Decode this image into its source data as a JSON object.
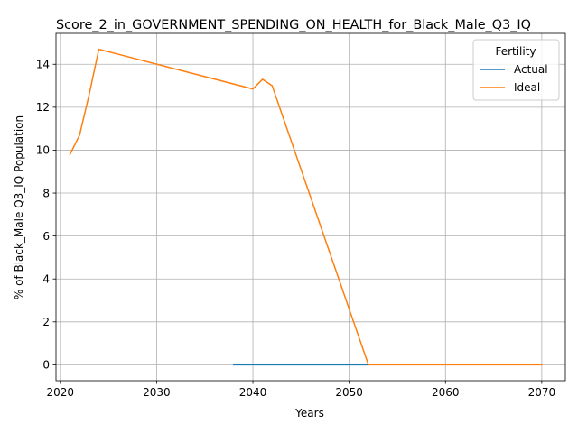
{
  "chart_data": {
    "type": "line",
    "title": "Score_2_in_GOVERNMENT_SPENDING_ON_HEALTH_for_Black_Male_Q3_IQ",
    "xlabel": "Years",
    "ylabel": "% of Black_Male Q3_IQ Population",
    "xlim": [
      2019.55,
      2072.45
    ],
    "ylim": [
      -0.74,
      15.44
    ],
    "xticks": [
      2020,
      2030,
      2040,
      2050,
      2060,
      2070
    ],
    "yticks": [
      0,
      2,
      4,
      6,
      8,
      10,
      12,
      14
    ],
    "grid": true,
    "legend": {
      "title": "Fertility",
      "placement": "top-right"
    },
    "series": [
      {
        "name": "Actual",
        "color": "#1f77b4",
        "x": [
          2038,
          2040,
          2045,
          2050,
          2052
        ],
        "y": [
          0,
          0,
          0,
          0,
          0
        ]
      },
      {
        "name": "Ideal",
        "color": "#ff7f0e",
        "x": [
          2021,
          2022,
          2023,
          2024,
          2040,
          2041,
          2042,
          2052,
          2055,
          2060,
          2065,
          2070
        ],
        "y": [
          9.8,
          10.7,
          12.6,
          14.7,
          12.85,
          13.3,
          13.0,
          0,
          0,
          0,
          0,
          0
        ]
      }
    ]
  }
}
